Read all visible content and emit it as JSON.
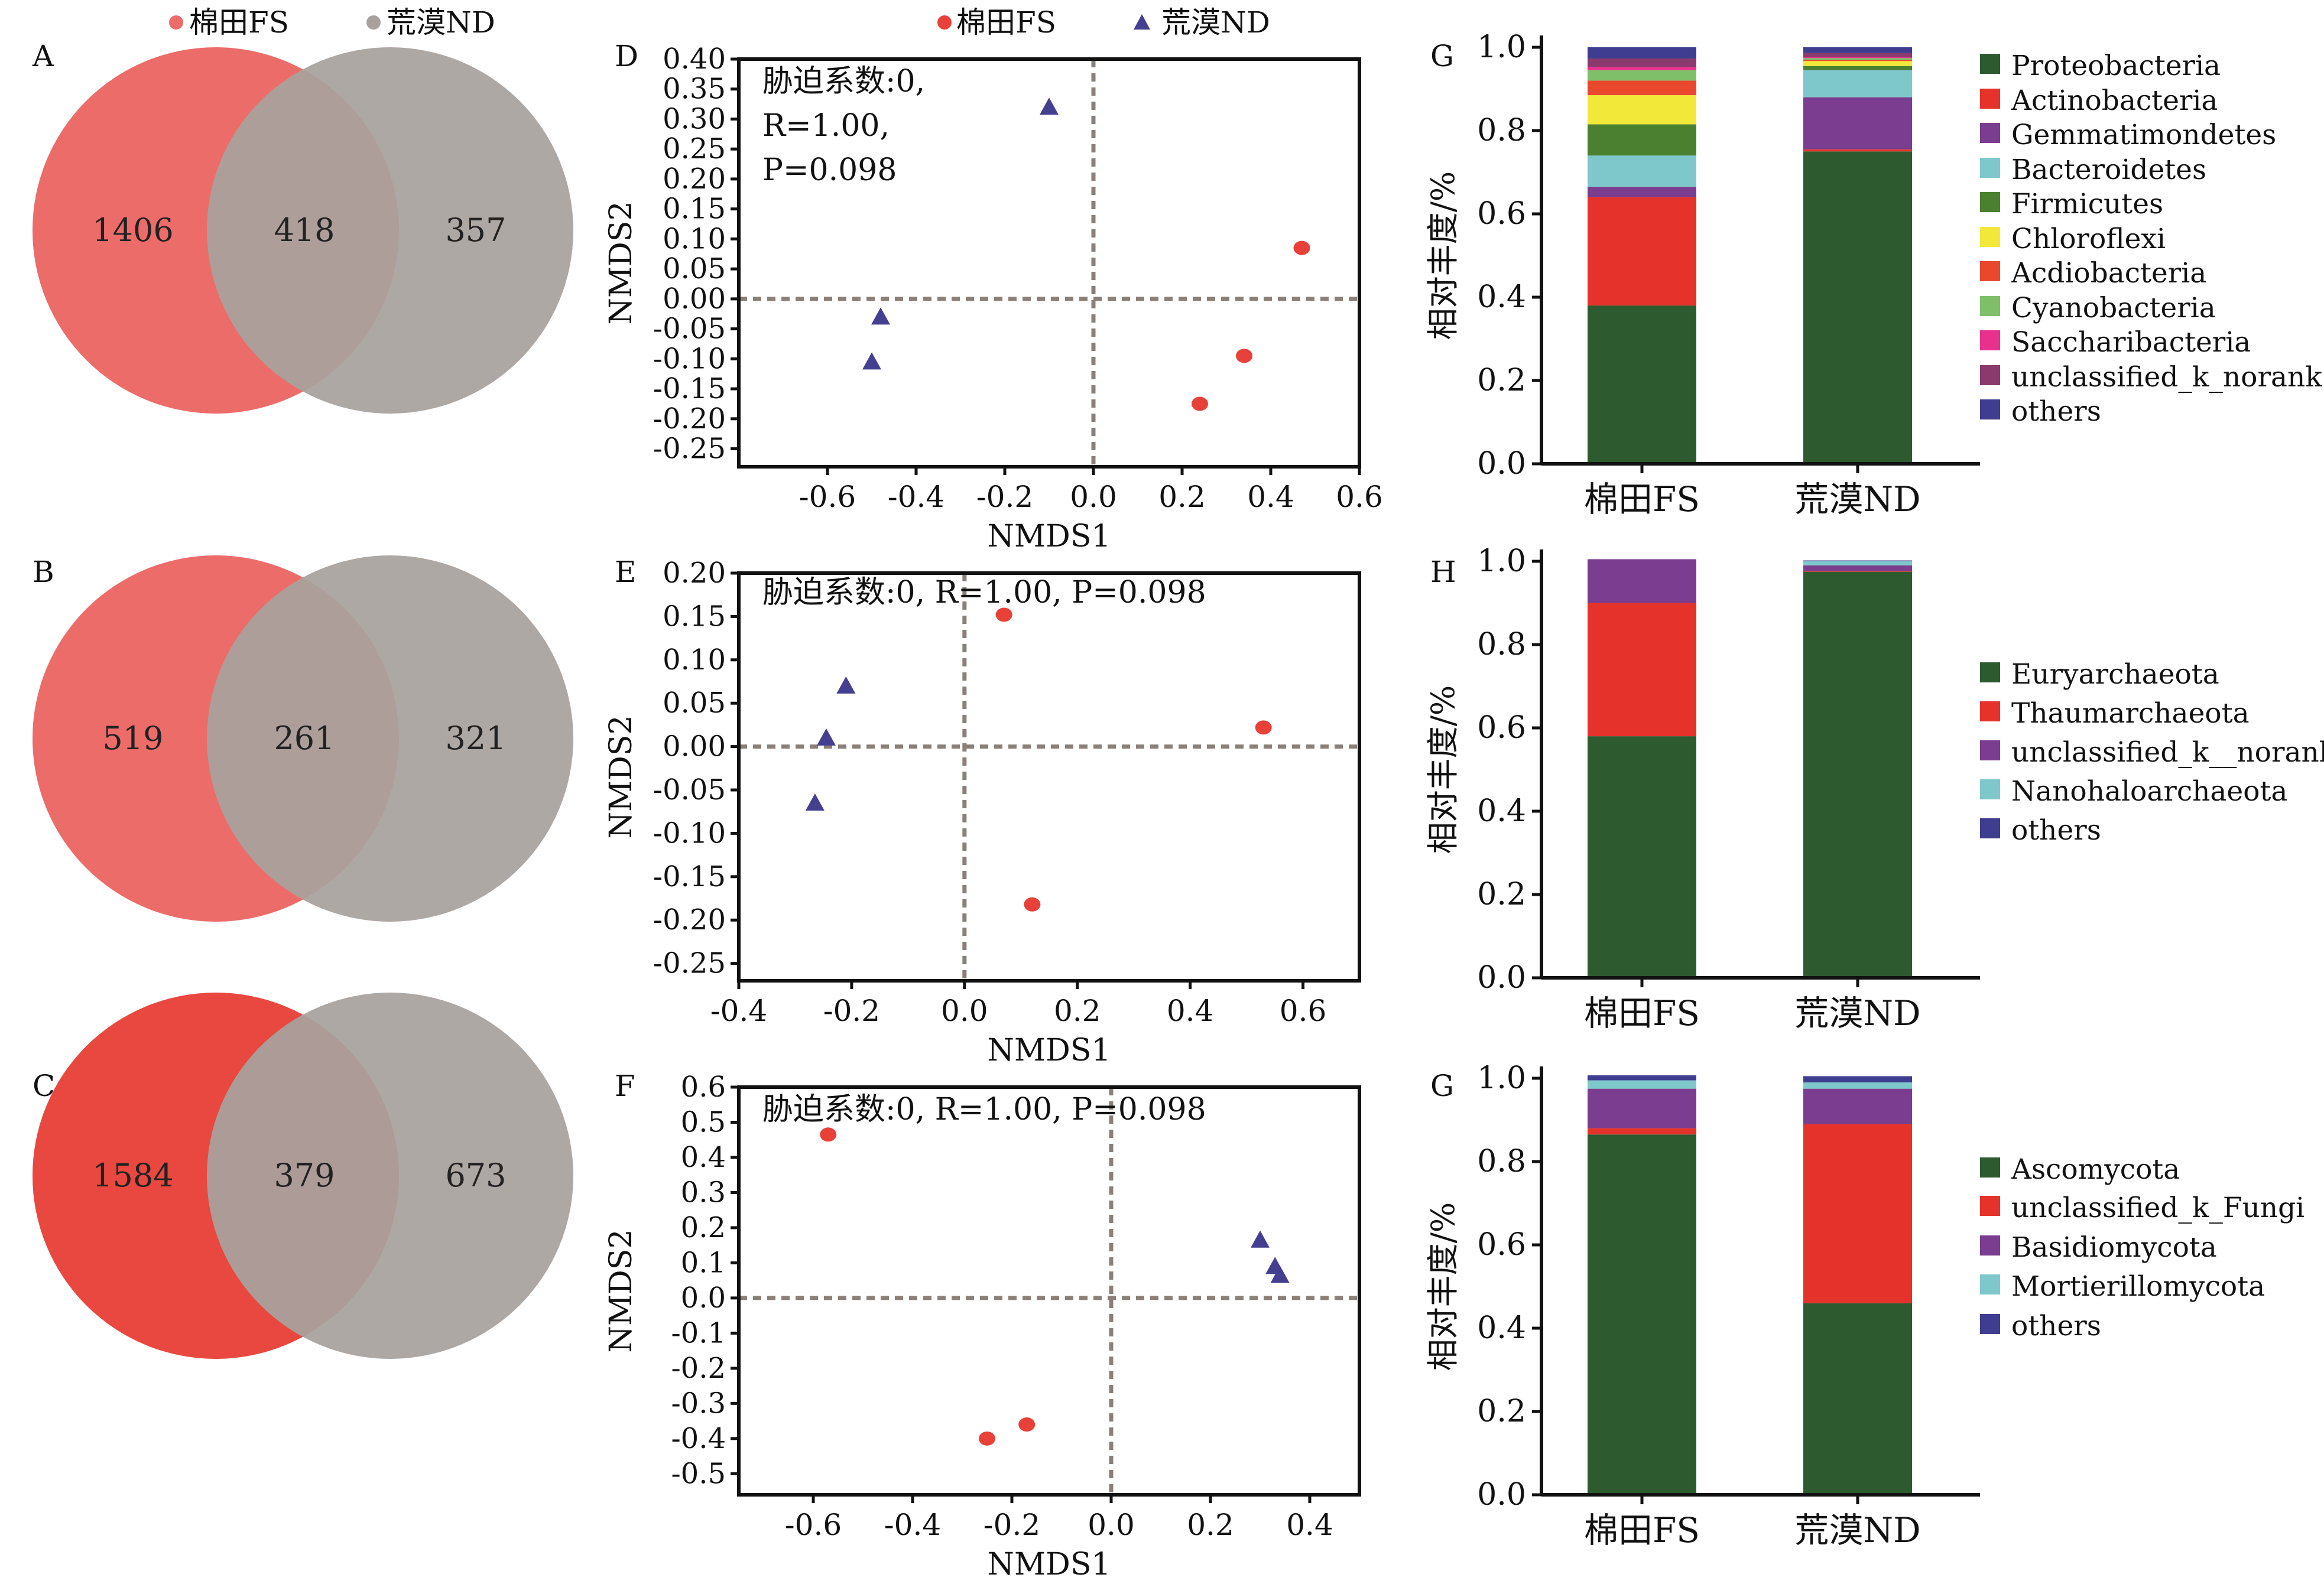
{
  "colors": {
    "fs": "#e8413a",
    "nd": "#443f90",
    "venn_fs": "#ec6c6a",
    "venn_fs_c": "#e8483f",
    "venn_nd": "#a8a19e",
    "axis": "#111111",
    "dash": "#8a8078"
  },
  "venn_legend": [
    {
      "label": "棉田FS",
      "color": "#ec6c6a"
    },
    {
      "label": "荒漠ND",
      "color": "#a8a19e"
    }
  ],
  "nmds_legend": [
    {
      "label": "棉田FS",
      "marker": "dot",
      "color": "#e8413a"
    },
    {
      "label": "荒漠ND",
      "marker": "triangle",
      "color": "#443f90"
    }
  ],
  "chart_data": [
    {
      "panel": "A",
      "type": "venn",
      "sets": [
        "棉田FS",
        "荒漠ND"
      ],
      "only_fs": 1406,
      "shared": 418,
      "only_nd": 357
    },
    {
      "panel": "B",
      "type": "venn",
      "sets": [
        "棉田FS",
        "荒漠ND"
      ],
      "only_fs": 519,
      "shared": 261,
      "only_nd": 321
    },
    {
      "panel": "C",
      "type": "venn",
      "sets": [
        "棉田FS",
        "荒漠ND"
      ],
      "only_fs": 1584,
      "shared": 379,
      "only_nd": 673
    },
    {
      "panel": "D",
      "type": "scatter",
      "xlabel": "NMDS1",
      "ylabel": "NMDS2",
      "annotation": [
        "胁迫系数:0,",
        "R=1.00,",
        "P=0.098"
      ],
      "xlim": [
        -0.8,
        0.6
      ],
      "ylim": [
        -0.28,
        0.4
      ],
      "xticks": [
        -0.6,
        -0.4,
        -0.2,
        0.0,
        0.2,
        0.4,
        0.6
      ],
      "yticks": [
        0.4,
        0.35,
        0.3,
        0.25,
        0.2,
        0.15,
        0.1,
        0.05,
        0.0,
        -0.05,
        -0.1,
        -0.15,
        -0.2,
        -0.25
      ],
      "series": [
        {
          "name": "棉田FS",
          "marker": "dot",
          "points": [
            [
              0.47,
              0.085
            ],
            [
              0.34,
              -0.095
            ],
            [
              0.24,
              -0.175
            ]
          ]
        },
        {
          "name": "荒漠ND",
          "marker": "triangle",
          "points": [
            [
              -0.1,
              0.32
            ],
            [
              -0.48,
              -0.03
            ],
            [
              -0.5,
              -0.105
            ]
          ]
        }
      ]
    },
    {
      "panel": "E",
      "type": "scatter",
      "xlabel": "NMDS1",
      "ylabel": "NMDS2",
      "annotation": [
        "胁迫系数:0, R=1.00, P=0.098"
      ],
      "xlim": [
        -0.4,
        0.7
      ],
      "ylim": [
        -0.27,
        0.2
      ],
      "xticks": [
        -0.4,
        -0.2,
        0.0,
        0.2,
        0.4,
        0.6
      ],
      "yticks": [
        0.2,
        0.15,
        0.1,
        0.05,
        0.0,
        -0.05,
        -0.1,
        -0.15,
        -0.2,
        -0.25
      ],
      "series": [
        {
          "name": "棉田FS",
          "marker": "dot",
          "points": [
            [
              0.07,
              0.152
            ],
            [
              0.53,
              0.022
            ],
            [
              0.12,
              -0.182
            ]
          ]
        },
        {
          "name": "荒漠ND",
          "marker": "triangle",
          "points": [
            [
              -0.21,
              0.07
            ],
            [
              -0.245,
              0.01
            ],
            [
              -0.265,
              -0.065
            ]
          ]
        }
      ]
    },
    {
      "panel": "F",
      "type": "scatter",
      "xlabel": "NMDS1",
      "ylabel": "NMDS2",
      "annotation": [
        "胁迫系数:0, R=1.00, P=0.098"
      ],
      "xlim": [
        -0.75,
        0.5
      ],
      "ylim": [
        -0.56,
        0.6
      ],
      "xticks": [
        -0.6,
        -0.4,
        -0.2,
        0.0,
        0.2,
        0.4
      ],
      "yticks": [
        0.6,
        0.5,
        0.4,
        0.3,
        0.2,
        0.1,
        0.0,
        -0.1,
        -0.2,
        -0.3,
        -0.4,
        -0.5
      ],
      "series": [
        {
          "name": "棉田FS",
          "marker": "dot",
          "points": [
            [
              -0.57,
              0.465
            ],
            [
              -0.25,
              -0.4
            ],
            [
              -0.17,
              -0.36
            ]
          ]
        },
        {
          "name": "荒漠ND",
          "marker": "triangle",
          "points": [
            [
              0.3,
              0.165
            ],
            [
              0.33,
              0.09
            ],
            [
              0.34,
              0.065
            ]
          ]
        }
      ]
    },
    {
      "panel": "G",
      "type": "bar",
      "stacked": true,
      "ylabel": "相对丰度/%",
      "ylim": [
        0,
        1.0
      ],
      "yticks": [
        0.0,
        0.2,
        0.4,
        0.6,
        0.8,
        1.0
      ],
      "categories": [
        "棉田FS",
        "荒漠ND"
      ],
      "series": [
        {
          "name": "Proteobacteria",
          "color": "#2e5a2f",
          "values": [
            0.38,
            0.75
          ]
        },
        {
          "name": "Actinobacteria",
          "color": "#e5322b",
          "values": [
            0.26,
            0.005
          ]
        },
        {
          "name": "Gemmatimondetes",
          "color": "#7b3d8f",
          "values": [
            0.025,
            0.125
          ]
        },
        {
          "name": "Bacteroidetes",
          "color": "#7ec8cc",
          "values": [
            0.075,
            0.065
          ]
        },
        {
          "name": "Firmicutes",
          "color": "#4b8030",
          "values": [
            0.075,
            0.01
          ]
        },
        {
          "name": "Chloroflexi",
          "color": "#f2e83a",
          "values": [
            0.07,
            0.012
          ]
        },
        {
          "name": "Acdiobacteria",
          "color": "#e9482d",
          "values": [
            0.035,
            0.003
          ]
        },
        {
          "name": "Cyanobacteria",
          "color": "#7fbf6a",
          "values": [
            0.025,
            0.004
          ]
        },
        {
          "name": "Saccharibacteria",
          "color": "#e7318d",
          "values": [
            0.008,
            0.002
          ]
        },
        {
          "name": "unclassified_k_norank",
          "color": "#8b3a6e",
          "values": [
            0.02,
            0.01
          ]
        },
        {
          "name": "others",
          "color": "#3f3d8f",
          "values": [
            0.027,
            0.014
          ]
        }
      ]
    },
    {
      "panel": "H",
      "type": "bar",
      "stacked": true,
      "ylabel": "相对丰度/%",
      "ylim": [
        0,
        1.0
      ],
      "yticks": [
        0.0,
        0.2,
        0.4,
        0.6,
        0.8,
        1.0
      ],
      "categories": [
        "棉田FS",
        "荒漠ND"
      ],
      "series": [
        {
          "name": "Euryarchaeota",
          "color": "#2e5a2f",
          "values": [
            0.58,
            0.975
          ]
        },
        {
          "name": "Thaumarchaeota",
          "color": "#e5322b",
          "values": [
            0.32,
            0.002
          ]
        },
        {
          "name": "unclassified_k__norank",
          "color": "#7b3d8f",
          "values": [
            0.105,
            0.013
          ]
        },
        {
          "name": "Nanohaloarchaeota",
          "color": "#7ec8cc",
          "values": [
            0.0,
            0.01
          ]
        },
        {
          "name": "others",
          "color": "#3f3d8f",
          "values": [
            0.0,
            0.002
          ]
        }
      ]
    },
    {
      "panel": "G",
      "type": "bar",
      "stacked": true,
      "ylabel": "相对丰度/%",
      "ylim": [
        0,
        1.0
      ],
      "yticks": [
        0.0,
        0.2,
        0.4,
        0.6,
        0.8,
        1.0
      ],
      "categories": [
        "棉田FS",
        "荒漠ND"
      ],
      "series": [
        {
          "name": "Ascomycota",
          "color": "#2e5a2f",
          "values": [
            0.865,
            0.46
          ]
        },
        {
          "name": "unclassified_k_Fungi",
          "color": "#e5322b",
          "values": [
            0.015,
            0.43
          ]
        },
        {
          "name": "Basidiomycota",
          "color": "#7b3d8f",
          "values": [
            0.095,
            0.085
          ]
        },
        {
          "name": "Mortierillomycota",
          "color": "#7ec8cc",
          "values": [
            0.02,
            0.015
          ]
        },
        {
          "name": "others",
          "color": "#3f3d8f",
          "values": [
            0.012,
            0.015
          ]
        }
      ]
    }
  ]
}
